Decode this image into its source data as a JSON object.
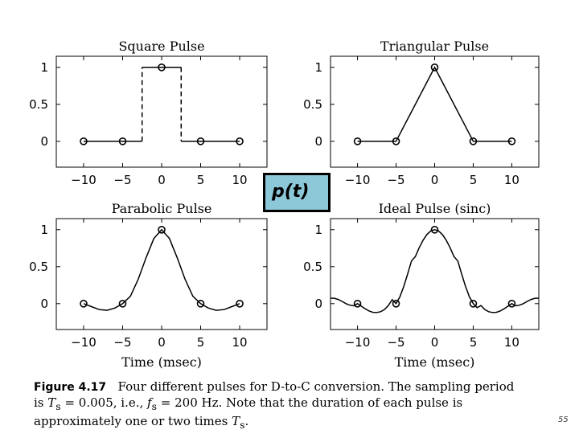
{
  "slide": {
    "pt_label": "p(t)",
    "page_number": "55"
  },
  "caption": {
    "fig_num": "Figure 4.17",
    "line1_rest": "Four different pulses for D-to-C conversion. The sampling period",
    "line2_a": "is ",
    "ts_symbol": "T",
    "ts_sub": "s",
    "line2_b": " = 0.005, i.e., ",
    "fs_symbol": "f",
    "fs_sub": "s",
    "line2_c": " = 200 Hz. Note that the duration of each pulse is",
    "line3_a": "approximately one or two times ",
    "ts2_symbol": "T",
    "ts2_sub": "s",
    "line3_b": "."
  },
  "chart_data": [
    {
      "type": "line",
      "title": "Square Pulse",
      "xlabel": "",
      "ylabel": "",
      "xlim": [
        -13.5,
        13.5
      ],
      "ylim": [
        -0.35,
        1.15
      ],
      "x_ticks": [
        -10,
        -5,
        0,
        5,
        10
      ],
      "x_tick_labels": [
        "−10",
        "−5",
        "0",
        "5",
        "10"
      ],
      "y_ticks": [
        0,
        0.5,
        1
      ],
      "y_tick_labels": [
        "0",
        "0.5",
        "1"
      ],
      "samples": {
        "x": [
          -10,
          -5,
          0,
          5,
          10
        ],
        "y": [
          0,
          0,
          1,
          0,
          0
        ]
      },
      "series": [
        {
          "name": "solid",
          "style": "solid",
          "x": [
            -10,
            -2.5
          ],
          "y": [
            0,
            0
          ]
        },
        {
          "name": "dashed-left",
          "style": "dashed",
          "x": [
            -2.5,
            -2.5
          ],
          "y": [
            0,
            1
          ]
        },
        {
          "name": "top",
          "style": "solid",
          "x": [
            -2.5,
            2.5
          ],
          "y": [
            1,
            1
          ]
        },
        {
          "name": "dashed-right",
          "style": "dashed",
          "x": [
            2.5,
            2.5
          ],
          "y": [
            1,
            0
          ]
        },
        {
          "name": "solid-right",
          "style": "solid",
          "x": [
            2.5,
            10
          ],
          "y": [
            0,
            0
          ]
        }
      ]
    },
    {
      "type": "line",
      "title": "Triangular Pulse",
      "xlabel": "",
      "ylabel": "",
      "xlim": [
        -13.5,
        13.5
      ],
      "ylim": [
        -0.35,
        1.15
      ],
      "x_ticks": [
        -10,
        -5,
        0,
        5,
        10
      ],
      "x_tick_labels": [
        "−10",
        "−5",
        "0",
        "5",
        "10"
      ],
      "y_ticks": [
        0,
        0.5,
        1
      ],
      "y_tick_labels": [
        "0",
        "0.5",
        "1"
      ],
      "samples": {
        "x": [
          -10,
          -5,
          0,
          5,
          10
        ],
        "y": [
          0,
          0,
          1,
          0,
          0
        ]
      },
      "series": [
        {
          "name": "triangle",
          "style": "solid",
          "x": [
            -10,
            -5,
            0,
            5,
            10
          ],
          "y": [
            0,
            0,
            1,
            0,
            0
          ]
        }
      ]
    },
    {
      "type": "line",
      "title": "Parabolic Pulse",
      "xlabel": "Time (msec)",
      "ylabel": "",
      "xlim": [
        -13.5,
        13.5
      ],
      "ylim": [
        -0.35,
        1.15
      ],
      "x_ticks": [
        -10,
        -5,
        0,
        5,
        10
      ],
      "x_tick_labels": [
        "−10",
        "−5",
        "0",
        "5",
        "10"
      ],
      "y_ticks": [
        0,
        0.5,
        1
      ],
      "y_tick_labels": [
        "0",
        "0.5",
        "1"
      ],
      "samples": {
        "x": [
          -10,
          -5,
          0,
          5,
          10
        ],
        "y": [
          0,
          0,
          1,
          0,
          0
        ]
      },
      "series": [
        {
          "name": "parabolic",
          "style": "solid",
          "x": [
            -10,
            -9,
            -8,
            -7,
            -6,
            -5,
            -4,
            -3,
            -2,
            -1,
            0,
            1,
            2,
            3,
            4,
            5,
            6,
            7,
            8,
            9,
            10
          ],
          "y": [
            0,
            -0.04,
            -0.08,
            -0.09,
            -0.06,
            0,
            0.1,
            0.33,
            0.62,
            0.88,
            1,
            0.88,
            0.62,
            0.33,
            0.1,
            0,
            -0.06,
            -0.09,
            -0.08,
            -0.04,
            0
          ]
        }
      ]
    },
    {
      "type": "line",
      "title": "Ideal Pulse  (sinc)",
      "xlabel": "Time (msec)",
      "ylabel": "",
      "xlim": [
        -13.5,
        13.5
      ],
      "ylim": [
        -0.35,
        1.15
      ],
      "x_ticks": [
        -10,
        -5,
        0,
        5,
        10
      ],
      "x_tick_labels": [
        "−10",
        "−5",
        "0",
        "5",
        "10"
      ],
      "y_ticks": [
        0,
        0.5,
        1
      ],
      "y_tick_labels": [
        "0",
        "0.5",
        "1"
      ],
      "samples": {
        "x": [
          -10,
          -5,
          0,
          5,
          10
        ],
        "y": [
          0,
          0,
          1,
          0,
          0
        ]
      },
      "series": [
        {
          "name": "sinc",
          "style": "solid",
          "x": [
            -13.5,
            -13,
            -12.5,
            -12,
            -11.5,
            -11,
            -10.5,
            -10,
            -9.5,
            -9,
            -8.5,
            -8,
            -7.5,
            -7,
            -6.5,
            -6,
            -5.5,
            -5,
            -4.5,
            -4,
            -3.5,
            -3,
            -2.5,
            -2,
            -1.5,
            -1,
            -0.5,
            0,
            0.5,
            1,
            1.5,
            2,
            2.5,
            3,
            3.5,
            4,
            4.5,
            5,
            5.5,
            6,
            6.5,
            7,
            7.5,
            8,
            8.5,
            9,
            9.5,
            10,
            10.5,
            11,
            11.5,
            12,
            12.5,
            13,
            13.5
          ],
          "y": [
            0.074,
            0.073,
            0.057,
            0.03,
            0,
            -0.021,
            -0.029,
            0,
            -0.035,
            -0.07,
            -0.1,
            -0.117,
            -0.12,
            -0.109,
            -0.079,
            -0.026,
            0.054,
            0,
            0.092,
            0.233,
            0.4,
            0.577,
            0.637,
            0.757,
            0.858,
            0.935,
            0.984,
            1,
            0.984,
            0.935,
            0.858,
            0.757,
            0.637,
            0.577,
            0.4,
            0.233,
            0.092,
            0,
            -0.054,
            -0.026,
            -0.079,
            -0.109,
            -0.12,
            -0.117,
            -0.1,
            -0.07,
            -0.035,
            0,
            -0.029,
            -0.021,
            0,
            0.03,
            0.057,
            0.073,
            0.074
          ]
        }
      ]
    }
  ]
}
